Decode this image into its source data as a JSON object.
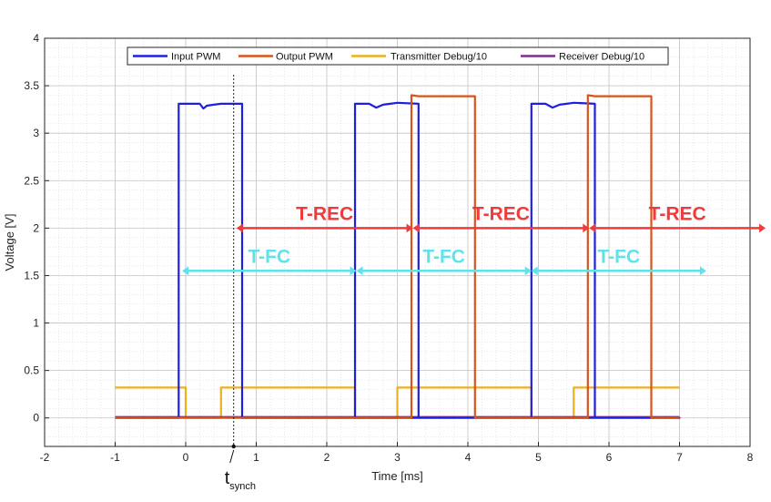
{
  "chart_data": {
    "type": "line",
    "xlabel": "Time [ms]",
    "ylabel": "Voltage [V]",
    "xlim": [
      -2,
      8
    ],
    "ylim": [
      -0.3,
      4
    ],
    "xticks": [
      "-2",
      "-1",
      "0",
      "1",
      "2",
      "3",
      "4",
      "5",
      "6",
      "7",
      "8"
    ],
    "yticks": [
      "0",
      "0.5",
      "1",
      "1.5",
      "2",
      "2.5",
      "3",
      "3.5",
      "4"
    ],
    "grid": true,
    "minor_grid": true,
    "legend_position": "top-center",
    "series": [
      {
        "name": "Input PWM",
        "color": "#1f1fe0",
        "x": [
          -1,
          -0.1,
          -0.1,
          0.0,
          0.2,
          0.25,
          0.3,
          0.4,
          0.5,
          0.6,
          0.8,
          0.8,
          7.0,
          2.4,
          2.4,
          2.6,
          2.7,
          2.8,
          2.9,
          3.0,
          3.3,
          3.3,
          4.9,
          4.9,
          5.1,
          5.2,
          5.3,
          5.4,
          5.5,
          5.8,
          5.8
        ],
        "y": [
          0.0,
          0.0,
          3.31,
          3.31,
          3.31,
          3.26,
          3.29,
          3.3,
          3.31,
          3.31,
          3.31,
          0.0,
          0.0,
          0.0,
          3.31,
          3.31,
          3.27,
          3.3,
          3.31,
          3.32,
          3.31,
          0.0,
          0.0,
          3.31,
          3.31,
          3.27,
          3.3,
          3.31,
          3.32,
          3.31,
          0.0
        ]
      },
      {
        "name": "Output PWM",
        "color": "#d95319",
        "x": [
          -1,
          3.2,
          3.2,
          3.3,
          4.1,
          4.1,
          5.7,
          5.7,
          5.8,
          6.6,
          6.6,
          7.0
        ],
        "y": [
          0.0,
          0.0,
          3.4,
          3.39,
          3.39,
          0.0,
          0.0,
          3.4,
          3.39,
          3.39,
          0.0,
          0.0
        ]
      },
      {
        "name": "Transmitter Debug/10",
        "color": "#edb120",
        "x": [
          -1,
          0.0,
          0.0,
          0.5,
          0.5,
          2.4,
          2.4,
          3.0,
          3.0,
          4.9,
          4.9,
          5.5,
          5.5,
          7.0
        ],
        "y": [
          0.32,
          0.32,
          0.0,
          0.0,
          0.32,
          0.32,
          0.0,
          0.0,
          0.32,
          0.32,
          0.0,
          0.0,
          0.32,
          0.32
        ]
      },
      {
        "name": "Receiver Debug/10",
        "color": "#7e2f8e",
        "x": [
          -1,
          7.0
        ],
        "y": [
          0.01,
          0.01
        ]
      }
    ],
    "annotations": [
      {
        "label": "T-REC",
        "y": 2.0,
        "x_start": 0.72,
        "x_end": 3.22,
        "color": "#ef3b3b"
      },
      {
        "label": "T-REC",
        "y": 2.0,
        "x_start": 3.22,
        "x_end": 5.72,
        "color": "#ef3b3b"
      },
      {
        "label": "T-REC",
        "y": 2.0,
        "x_start": 5.72,
        "x_end": 8.22,
        "color": "#ef3b3b"
      },
      {
        "label": "T-FC",
        "y": 1.55,
        "x_start": -0.05,
        "x_end": 2.42,
        "color": "#5ee3ea"
      },
      {
        "label": "T-FC",
        "y": 1.55,
        "x_start": 2.42,
        "x_end": 4.9,
        "color": "#5ee3ea"
      },
      {
        "label": "T-FC",
        "y": 1.55,
        "x_start": 4.9,
        "x_end": 7.38,
        "color": "#5ee3ea"
      }
    ],
    "marker": {
      "label_main": "t",
      "label_sub": "synch",
      "x": 0.68
    }
  }
}
